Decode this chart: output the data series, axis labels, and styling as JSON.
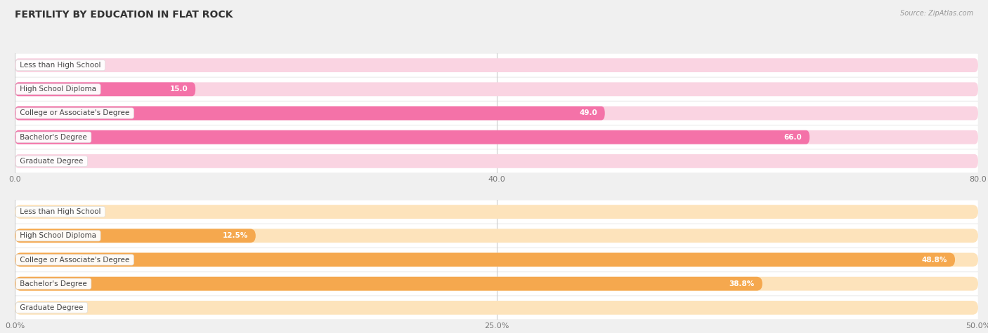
{
  "title": "FERTILITY BY EDUCATION IN FLAT ROCK",
  "source": "Source: ZipAtlas.com",
  "chart1": {
    "categories": [
      "Less than High School",
      "High School Diploma",
      "College or Associate's Degree",
      "Bachelor's Degree",
      "Graduate Degree"
    ],
    "values": [
      0.0,
      15.0,
      49.0,
      66.0,
      0.0
    ],
    "bar_color": "#f472a8",
    "bar_bg_color": "#fad4e2",
    "xlim": [
      0,
      80
    ],
    "xticks": [
      0.0,
      40.0,
      80.0
    ],
    "xtick_labels": [
      "0.0",
      "40.0",
      "80.0"
    ],
    "inside_threshold": 10,
    "value_fmt": ""
  },
  "chart2": {
    "categories": [
      "Less than High School",
      "High School Diploma",
      "College or Associate's Degree",
      "Bachelor's Degree",
      "Graduate Degree"
    ],
    "values": [
      0.0,
      12.5,
      48.8,
      38.8,
      0.0
    ],
    "bar_color": "#f5a84e",
    "bar_bg_color": "#fde3bb",
    "xlim": [
      0,
      50
    ],
    "xticks": [
      0.0,
      25.0,
      50.0
    ],
    "xtick_labels": [
      "0.0%",
      "25.0%",
      "50.0%"
    ],
    "inside_threshold": 5,
    "value_fmt": "%"
  },
  "bg_color": "#f0f0f0",
  "row_bg_color": "#ffffff",
  "title_fontsize": 10,
  "label_fontsize": 7.5,
  "value_fontsize": 7.5,
  "tick_fontsize": 8,
  "source_fontsize": 7
}
